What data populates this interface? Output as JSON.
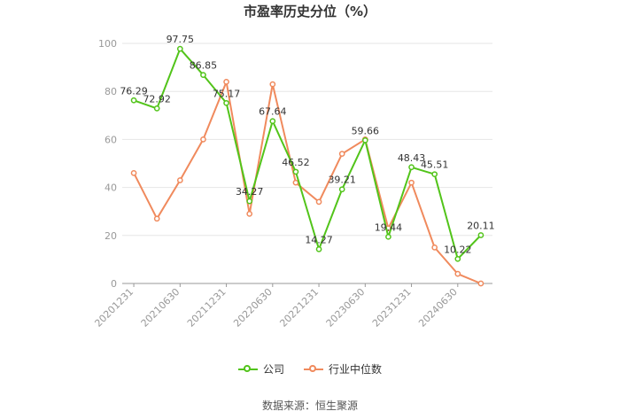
{
  "chart_data": {
    "type": "line",
    "title": "市盈率历史分位（%）",
    "x": [
      "20201231",
      "20210331",
      "20210630",
      "20210930",
      "20211231",
      "20220331",
      "20220630",
      "20220930",
      "20221231",
      "20230331",
      "20230630",
      "20230930",
      "20231231",
      "20240331",
      "20240630",
      "20240930"
    ],
    "xtick_labels": [
      "20201231",
      "20210630",
      "20211231",
      "20220630",
      "20221231",
      "20230630",
      "20231231",
      "20240630"
    ],
    "ylim": [
      0,
      100
    ],
    "yticks": [
      0,
      20,
      40,
      60,
      80,
      100
    ],
    "grid": "horizontal",
    "legend_position": "bottom",
    "series": [
      {
        "name": "公司",
        "color": "#52c41a",
        "values": [
          76.29,
          72.92,
          97.75,
          86.85,
          75.17,
          34.27,
          67.64,
          46.52,
          14.27,
          39.21,
          59.66,
          19.44,
          48.43,
          45.51,
          10.22,
          20.11
        ],
        "labels": [
          "76.29",
          "72.92",
          "97.75",
          "86.85",
          "75.17",
          "34.27",
          "67.64",
          "46.52",
          "14.27",
          "39.21",
          "59.66",
          "19.44",
          "48.43",
          "45.51",
          "10.22",
          "20.11"
        ]
      },
      {
        "name": "行业中位数",
        "color": "#f08a5d",
        "values": [
          46,
          27,
          43,
          60,
          84,
          29,
          83,
          42,
          34,
          54,
          60,
          23,
          42,
          15,
          4,
          0
        ]
      }
    ]
  },
  "footer": {
    "source": "数据来源：恒生聚源"
  }
}
